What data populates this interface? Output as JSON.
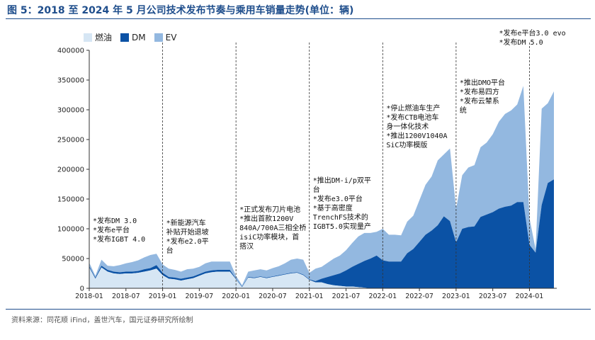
{
  "figure": {
    "title": "图 5：2018 至 2024 年 5 月公司技术发布节奏与乘用车销量走势(单位：辆)",
    "source": "资料来源：同花顺 iFind，盖世汽车，国元证券研究所绘制"
  },
  "chart_data": {
    "type": "area",
    "stacked": true,
    "ylim": [
      0,
      400000
    ],
    "yticks": [
      "0",
      "50000",
      "100000",
      "150000",
      "200000",
      "250000",
      "300000",
      "350000",
      "400000"
    ],
    "xticks": [
      "2018-01",
      "2018-07",
      "2019-01",
      "2019-07",
      "2020-01",
      "2020-07",
      "2021-01",
      "2021-07",
      "2022-01",
      "2022-07",
      "2023-01",
      "2023-07",
      "2024-01"
    ],
    "x_start": "2018-01",
    "legend_position": "top-left",
    "grid": false,
    "series": [
      {
        "name": "燃油",
        "color": "#d6e6f4",
        "values": [
          35000,
          16000,
          35000,
          28000,
          25000,
          24000,
          25000,
          25000,
          26000,
          28000,
          30000,
          33000,
          22000,
          16000,
          15000,
          13000,
          15000,
          17000,
          21000,
          25000,
          27000,
          28000,
          28000,
          28000,
          15000,
          2000,
          18000,
          17000,
          19000,
          17000,
          19000,
          21000,
          23000,
          25000,
          26000,
          22000,
          14000,
          10000,
          10000,
          7000,
          5000,
          4000,
          3000,
          3000,
          2000,
          1000,
          0,
          0,
          0,
          0,
          0,
          0,
          0,
          0,
          0,
          0,
          0,
          0,
          0,
          0,
          0,
          0,
          0,
          0,
          0,
          0,
          0,
          0,
          0,
          0,
          0,
          0,
          0,
          0,
          0,
          0,
          0
        ]
      },
      {
        "name": "DM",
        "color": "#0b52a5",
        "values": [
          2000,
          2000,
          3000,
          3000,
          3000,
          3000,
          3000,
          3000,
          3000,
          4000,
          4000,
          6000,
          4000,
          3000,
          3000,
          3000,
          3000,
          3000,
          3000,
          3000,
          3000,
          3000,
          3000,
          3000,
          1000,
          1000,
          1000,
          1000,
          1000,
          1000,
          1000,
          1000,
          1000,
          1000,
          1000,
          1000,
          1000,
          2000,
          6000,
          12000,
          17000,
          21000,
          27000,
          33000,
          39000,
          45000,
          50000,
          55000,
          47000,
          45000,
          45000,
          45000,
          59000,
          66000,
          78000,
          90000,
          97000,
          106000,
          121000,
          113000,
          77000,
          100000,
          103000,
          104000,
          120000,
          124000,
          128000,
          134000,
          137000,
          139000,
          145000,
          145000,
          73000,
          60000,
          140000,
          177000,
          183000
        ]
      },
      {
        "name": "EV",
        "color": "#93b8e0",
        "values": [
          6000,
          3000,
          10000,
          7000,
          9000,
          12000,
          14000,
          16000,
          18000,
          20000,
          22000,
          19000,
          14000,
          14000,
          13000,
          12000,
          14000,
          13000,
          12000,
          14000,
          15000,
          14000,
          14000,
          14000,
          5000,
          2000,
          9000,
          12000,
          12000,
          12000,
          14000,
          15000,
          18000,
          22000,
          23000,
          25000,
          11000,
          21000,
          20000,
          24000,
          28000,
          30000,
          34000,
          40000,
          46000,
          47000,
          43000,
          40000,
          53000,
          45000,
          45000,
          44000,
          53000,
          56000,
          70000,
          84000,
          91000,
          109000,
          104000,
          122000,
          57000,
          90000,
          100000,
          103000,
          117000,
          121000,
          131000,
          146000,
          156000,
          160000,
          164000,
          195000,
          45000,
          6000,
          162000,
          134000,
          148000
        ]
      }
    ],
    "release_lines": [
      "2019-01",
      "2020-01",
      "2021-01",
      "2022-01",
      "2023-01",
      "2024-01"
    ],
    "annotations": [
      {
        "month": "2018-01",
        "lines": [
          "*发布DM 3.0",
          "*发布e平台",
          "*发布IGBT 4.0"
        ]
      },
      {
        "month": "2019-01",
        "lines": [
          "*新能源汽车",
          "补贴开始退坡",
          "*发布e2.0平",
          "台"
        ]
      },
      {
        "month": "2020-01",
        "lines": [
          "*正式发布刀片电池",
          "*推出首款1200V",
          "840A/700A三相全桥",
          "isiC功率模块，首",
          "搭汉"
        ]
      },
      {
        "month": "2021-01",
        "lines": [
          "*推出DM-i/p双平",
          "台",
          "*发布e3.0平台",
          "*基于高密度",
          "TrenchFS技术的",
          "IGBT5.0实现量产"
        ]
      },
      {
        "month": "2022-01",
        "lines": [
          "*停止燃油车生产",
          "*发布CTB电池车",
          "身一体化技术",
          "*推出1200V1040A",
          "SiC功率模版"
        ]
      },
      {
        "month": "2023-01",
        "lines": [
          "*推出DMO平台",
          "*发布易四方",
          "*发布云辇系",
          "统"
        ]
      },
      {
        "month": "2024-01",
        "lines": [
          "*发布e平台3.0 evo",
          "*发布DM 5.0"
        ]
      }
    ]
  }
}
